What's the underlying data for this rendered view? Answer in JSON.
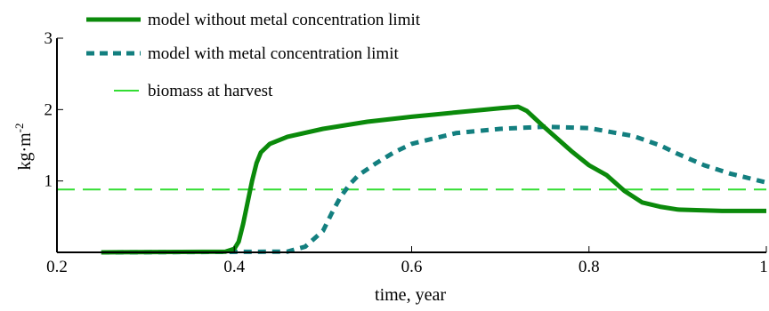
{
  "chart_data": {
    "type": "line",
    "xlabel": "time, year",
    "ylabel": "kg·m",
    "ylabel_exponent": "-2",
    "xlim": [
      0.2,
      1.0
    ],
    "ylim": [
      0,
      3
    ],
    "x_ticks": [
      {
        "value": 0.2,
        "label": "0.2"
      },
      {
        "value": 0.4,
        "label": "0.4"
      },
      {
        "value": 0.6,
        "label": "0.6"
      },
      {
        "value": 0.8,
        "label": "0.8"
      },
      {
        "value": 1.0,
        "label": "1"
      }
    ],
    "y_ticks": [
      {
        "value": 1,
        "label": "1"
      },
      {
        "value": 2,
        "label": "2"
      },
      {
        "value": 3,
        "label": "3"
      }
    ],
    "legend": "top-left",
    "grid": false,
    "series": [
      {
        "name": "model without metal concentration limit",
        "color": "#0b8a0b",
        "style": "solid",
        "x": [
          0.25,
          0.39,
          0.4,
          0.405,
          0.41,
          0.415,
          0.42,
          0.425,
          0.43,
          0.44,
          0.46,
          0.5,
          0.55,
          0.6,
          0.65,
          0.7,
          0.72,
          0.73,
          0.75,
          0.78,
          0.8,
          0.82,
          0.84,
          0.86,
          0.88,
          0.9,
          0.95,
          1.0
        ],
        "y": [
          0.0,
          0.01,
          0.05,
          0.15,
          0.4,
          0.7,
          1.0,
          1.25,
          1.4,
          1.52,
          1.62,
          1.73,
          1.83,
          1.9,
          1.96,
          2.02,
          2.04,
          1.98,
          1.75,
          1.42,
          1.22,
          1.08,
          0.86,
          0.7,
          0.64,
          0.6,
          0.58,
          0.58
        ]
      },
      {
        "name": "model with metal concentration limit",
        "color": "#137f7f",
        "style": "dashed",
        "x": [
          0.25,
          0.46,
          0.48,
          0.5,
          0.51,
          0.52,
          0.53,
          0.54,
          0.56,
          0.58,
          0.6,
          0.65,
          0.7,
          0.75,
          0.8,
          0.85,
          0.88,
          0.9,
          0.93,
          0.96,
          1.0
        ],
        "y": [
          0.0,
          0.01,
          0.08,
          0.3,
          0.55,
          0.78,
          0.95,
          1.08,
          1.25,
          1.4,
          1.52,
          1.67,
          1.73,
          1.76,
          1.74,
          1.63,
          1.5,
          1.38,
          1.22,
          1.1,
          0.98
        ]
      },
      {
        "name": "biomass at harvest",
        "color": "#33dd33",
        "style": "long-dash",
        "x": [
          0.2,
          1.0
        ],
        "y": [
          0.88,
          0.88
        ]
      }
    ]
  }
}
